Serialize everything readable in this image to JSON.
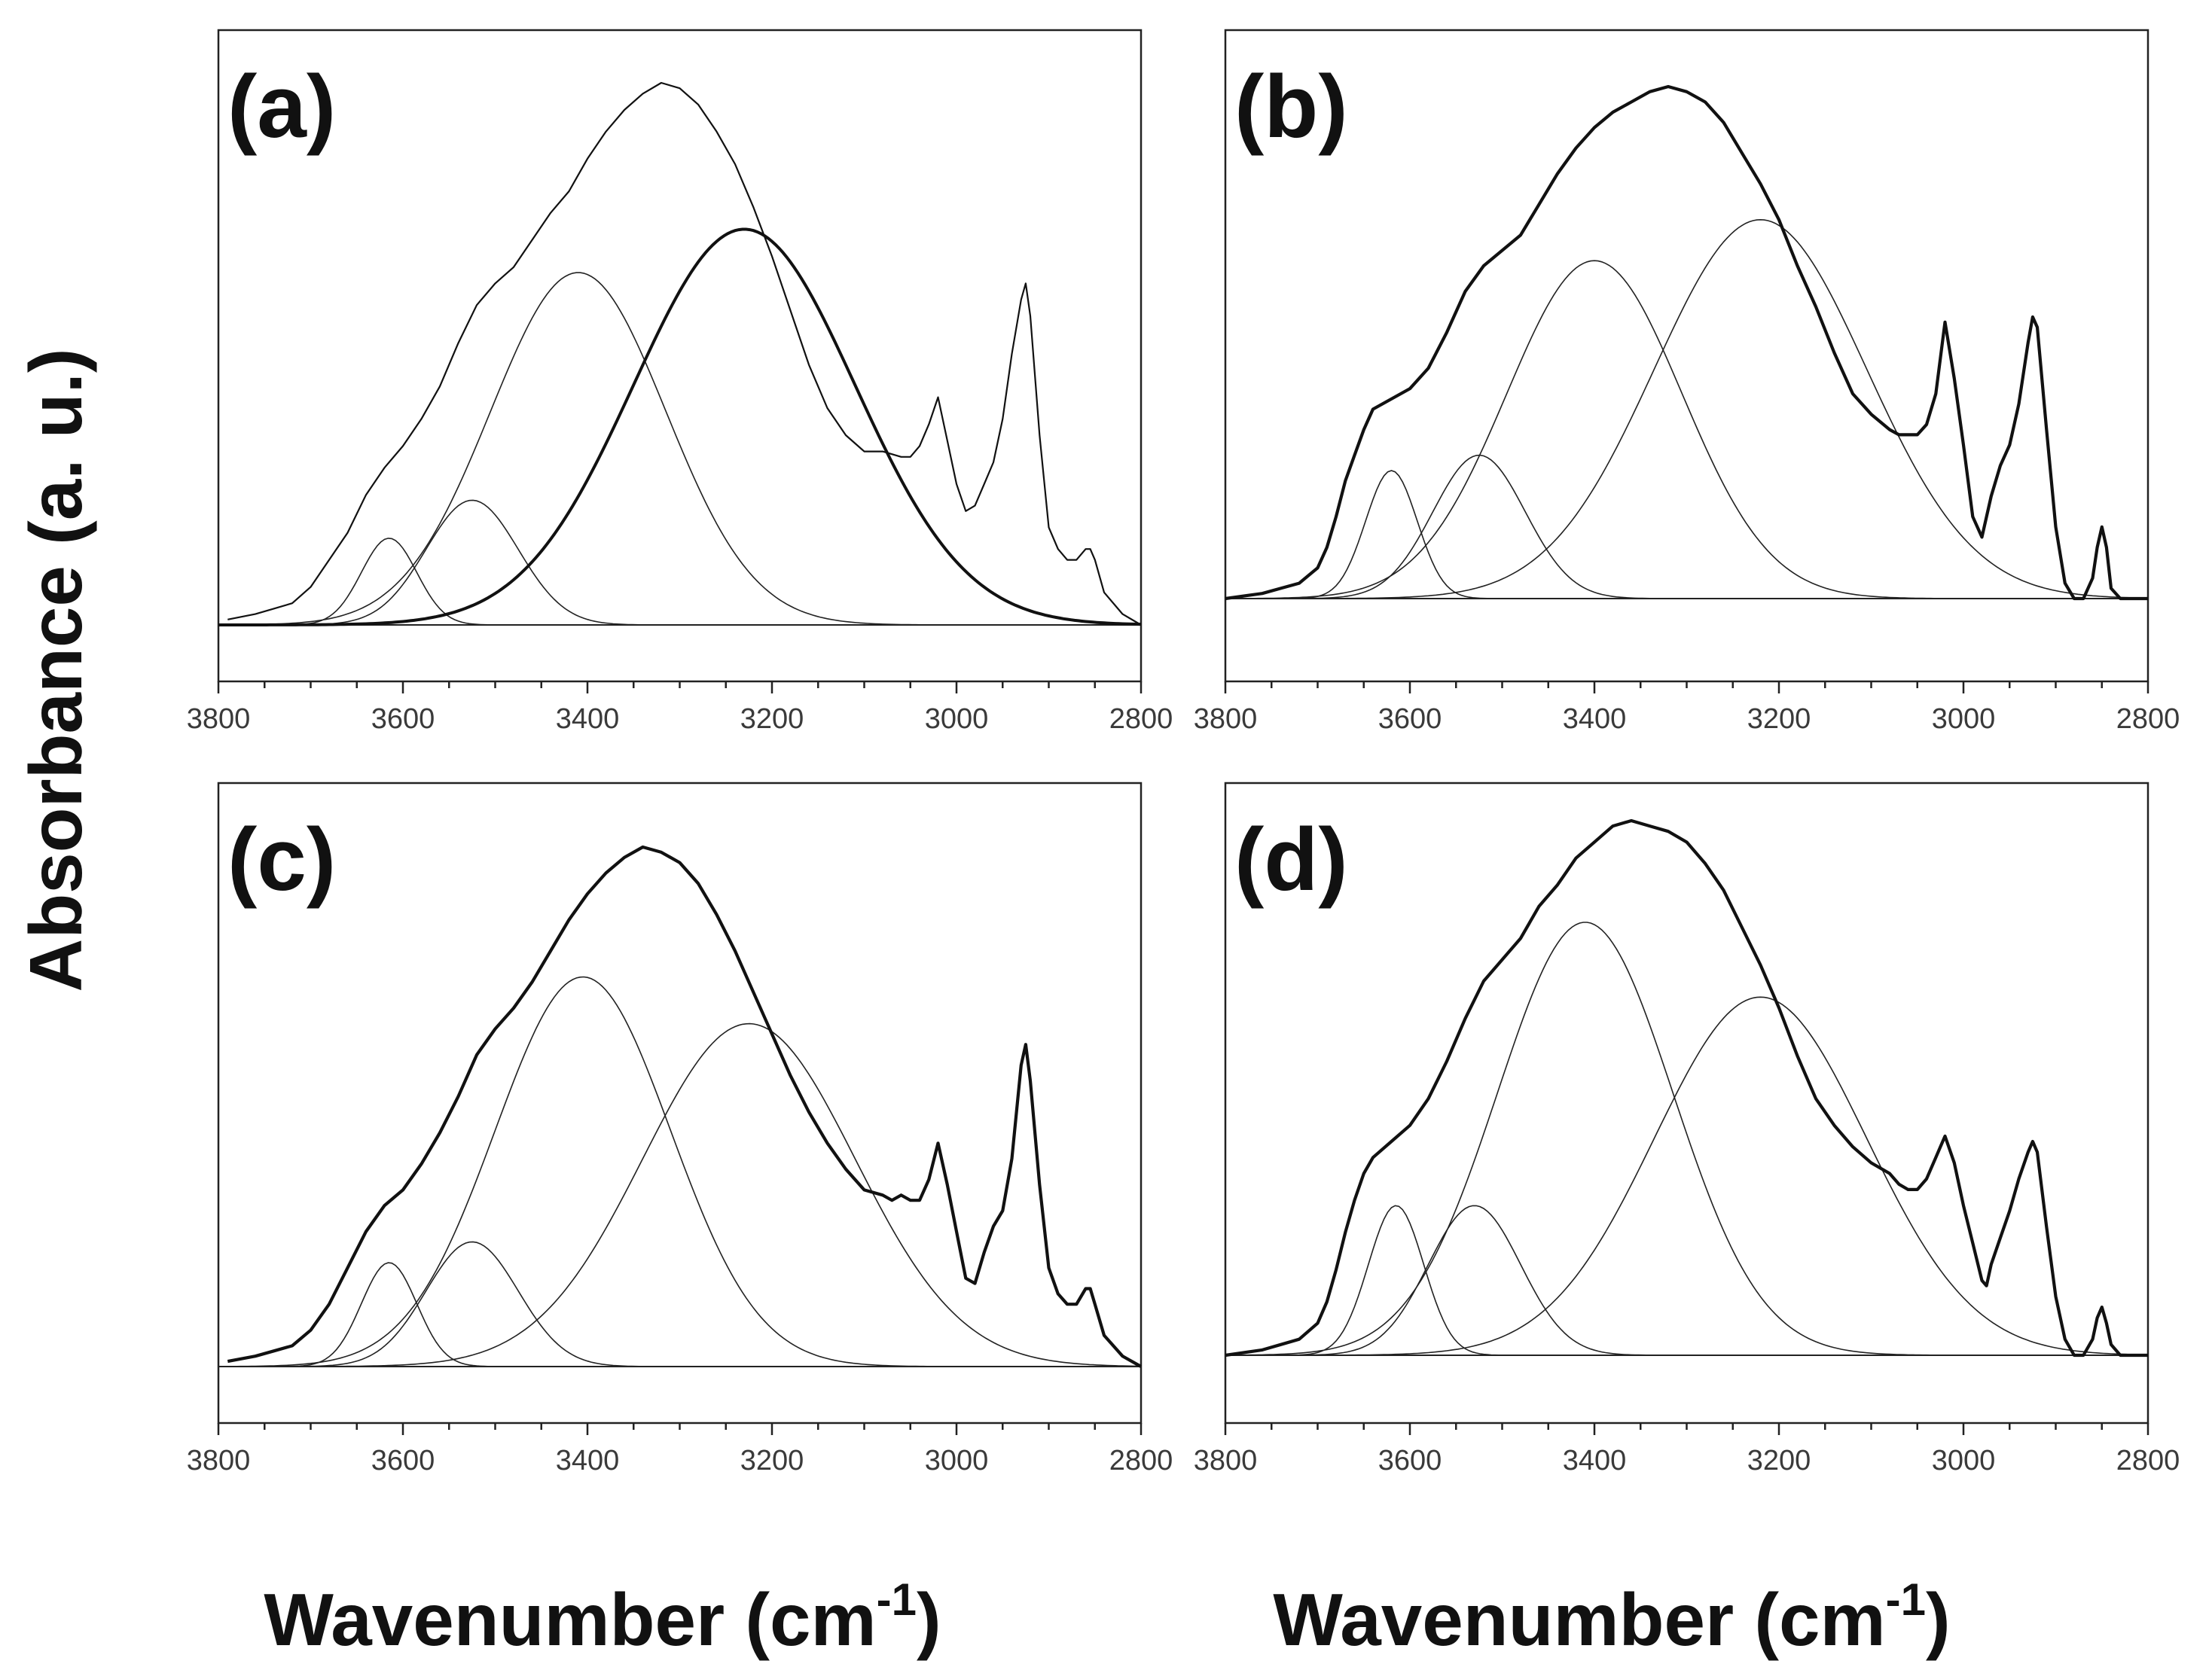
{
  "figure": {
    "ylabel": "Absorbance (a. u.)",
    "xlabel_left": "Wavenumber (cm",
    "xlabel_right": "Wavenumber (cm",
    "xlabel_sup": "-1",
    "xlabel_close": ")"
  },
  "chart_data": [
    {
      "type": "line",
      "panel": "(a)",
      "xlim": [
        3800,
        2800
      ],
      "x_ticks": [
        3800,
        3600,
        3400,
        3200,
        3000,
        2800
      ],
      "baseline": 0,
      "measured_spectrum": {
        "x": [
          3790,
          3760,
          3740,
          3720,
          3700,
          3680,
          3660,
          3640,
          3620,
          3600,
          3580,
          3560,
          3540,
          3520,
          3500,
          3480,
          3460,
          3440,
          3420,
          3400,
          3380,
          3360,
          3340,
          3320,
          3300,
          3280,
          3260,
          3240,
          3220,
          3200,
          3180,
          3160,
          3140,
          3120,
          3100,
          3080,
          3060,
          3050,
          3040,
          3030,
          3020,
          3010,
          3000,
          2990,
          2980,
          2970,
          2960,
          2950,
          2940,
          2930,
          2925,
          2920,
          2910,
          2900,
          2890,
          2880,
          2870,
          2860,
          2855,
          2850,
          2840,
          2820,
          2800
        ],
        "y": [
          0.01,
          0.02,
          0.03,
          0.04,
          0.07,
          0.12,
          0.17,
          0.24,
          0.29,
          0.33,
          0.38,
          0.44,
          0.52,
          0.59,
          0.63,
          0.66,
          0.71,
          0.76,
          0.8,
          0.86,
          0.91,
          0.95,
          0.98,
          1.0,
          0.99,
          0.96,
          0.91,
          0.85,
          0.77,
          0.68,
          0.58,
          0.48,
          0.4,
          0.35,
          0.32,
          0.32,
          0.31,
          0.31,
          0.33,
          0.37,
          0.42,
          0.34,
          0.26,
          0.21,
          0.22,
          0.26,
          0.3,
          0.38,
          0.5,
          0.6,
          0.63,
          0.57,
          0.35,
          0.18,
          0.14,
          0.12,
          0.12,
          0.14,
          0.14,
          0.12,
          0.06,
          0.02,
          0.0
        ]
      },
      "components": [
        {
          "center": 3615,
          "amplitude": 0.16,
          "sigma": 30
        },
        {
          "center": 3525,
          "amplitude": 0.23,
          "sigma": 50
        },
        {
          "center": 3410,
          "amplitude": 0.65,
          "sigma": 95
        },
        {
          "center": 3230,
          "amplitude": 0.73,
          "sigma": 120,
          "bold": true
        }
      ]
    },
    {
      "type": "line",
      "panel": "(b)",
      "xlim": [
        3800,
        2800
      ],
      "x_ticks": [
        3800,
        3600,
        3400,
        3200,
        3000,
        2800
      ],
      "baseline": 0,
      "measured_spectrum": {
        "x": [
          3800,
          3760,
          3740,
          3720,
          3700,
          3690,
          3680,
          3670,
          3660,
          3650,
          3640,
          3620,
          3600,
          3580,
          3560,
          3540,
          3520,
          3500,
          3480,
          3460,
          3440,
          3420,
          3400,
          3380,
          3360,
          3340,
          3320,
          3300,
          3280,
          3260,
          3240,
          3220,
          3200,
          3180,
          3160,
          3140,
          3120,
          3100,
          3080,
          3070,
          3060,
          3050,
          3040,
          3030,
          3020,
          3010,
          3000,
          2990,
          2980,
          2970,
          2960,
          2950,
          2940,
          2930,
          2925,
          2920,
          2910,
          2900,
          2890,
          2880,
          2870,
          2860,
          2855,
          2850,
          2845,
          2840,
          2830,
          2800
        ],
        "y": [
          0.0,
          0.01,
          0.02,
          0.03,
          0.06,
          0.1,
          0.16,
          0.23,
          0.28,
          0.33,
          0.37,
          0.39,
          0.41,
          0.45,
          0.52,
          0.6,
          0.65,
          0.68,
          0.71,
          0.77,
          0.83,
          0.88,
          0.92,
          0.95,
          0.97,
          0.99,
          1.0,
          0.99,
          0.97,
          0.93,
          0.87,
          0.81,
          0.74,
          0.65,
          0.57,
          0.48,
          0.4,
          0.36,
          0.33,
          0.32,
          0.32,
          0.32,
          0.34,
          0.4,
          0.54,
          0.43,
          0.3,
          0.16,
          0.12,
          0.2,
          0.26,
          0.3,
          0.38,
          0.5,
          0.55,
          0.53,
          0.33,
          0.14,
          0.03,
          0.0,
          0.0,
          0.04,
          0.1,
          0.14,
          0.1,
          0.02,
          0.0,
          0.0
        ]
      },
      "components": [
        {
          "center": 3620,
          "amplitude": 0.25,
          "sigma": 28
        },
        {
          "center": 3525,
          "amplitude": 0.28,
          "sigma": 50
        },
        {
          "center": 3400,
          "amplitude": 0.66,
          "sigma": 95
        },
        {
          "center": 3220,
          "amplitude": 0.74,
          "sigma": 115
        }
      ]
    },
    {
      "type": "line",
      "panel": "(c)",
      "xlim": [
        3800,
        2800
      ],
      "x_ticks": [
        3800,
        3600,
        3400,
        3200,
        3000,
        2800
      ],
      "baseline": 0,
      "measured_spectrum": {
        "x": [
          3790,
          3760,
          3740,
          3720,
          3700,
          3680,
          3660,
          3640,
          3620,
          3600,
          3580,
          3560,
          3540,
          3520,
          3500,
          3480,
          3460,
          3440,
          3420,
          3400,
          3380,
          3360,
          3340,
          3320,
          3300,
          3280,
          3260,
          3240,
          3220,
          3200,
          3180,
          3160,
          3140,
          3120,
          3100,
          3080,
          3070,
          3060,
          3050,
          3040,
          3030,
          3020,
          3010,
          3000,
          2990,
          2980,
          2970,
          2960,
          2950,
          2940,
          2930,
          2925,
          2920,
          2910,
          2900,
          2890,
          2880,
          2870,
          2860,
          2855,
          2850,
          2840,
          2820,
          2800
        ],
        "y": [
          0.01,
          0.02,
          0.03,
          0.04,
          0.07,
          0.12,
          0.19,
          0.26,
          0.31,
          0.34,
          0.39,
          0.45,
          0.52,
          0.6,
          0.65,
          0.69,
          0.74,
          0.8,
          0.86,
          0.91,
          0.95,
          0.98,
          1.0,
          0.99,
          0.97,
          0.93,
          0.87,
          0.8,
          0.72,
          0.64,
          0.56,
          0.49,
          0.43,
          0.38,
          0.34,
          0.33,
          0.32,
          0.33,
          0.32,
          0.32,
          0.36,
          0.43,
          0.35,
          0.26,
          0.17,
          0.16,
          0.22,
          0.27,
          0.3,
          0.4,
          0.58,
          0.62,
          0.55,
          0.35,
          0.19,
          0.14,
          0.12,
          0.12,
          0.15,
          0.15,
          0.12,
          0.06,
          0.02,
          0.0
        ]
      },
      "components": [
        {
          "center": 3615,
          "amplitude": 0.2,
          "sigma": 30
        },
        {
          "center": 3525,
          "amplitude": 0.24,
          "sigma": 50
        },
        {
          "center": 3405,
          "amplitude": 0.75,
          "sigma": 95
        },
        {
          "center": 3225,
          "amplitude": 0.66,
          "sigma": 115
        }
      ]
    },
    {
      "type": "line",
      "panel": "(d)",
      "xlim": [
        3800,
        2800
      ],
      "x_ticks": [
        3800,
        3600,
        3400,
        3200,
        3000,
        2800
      ],
      "baseline": 0,
      "measured_spectrum": {
        "x": [
          3800,
          3760,
          3740,
          3720,
          3700,
          3690,
          3680,
          3670,
          3660,
          3650,
          3640,
          3620,
          3600,
          3580,
          3560,
          3540,
          3520,
          3500,
          3480,
          3460,
          3440,
          3420,
          3400,
          3380,
          3360,
          3340,
          3320,
          3300,
          3280,
          3260,
          3240,
          3220,
          3200,
          3180,
          3160,
          3140,
          3120,
          3100,
          3080,
          3070,
          3060,
          3050,
          3040,
          3030,
          3020,
          3010,
          3000,
          2990,
          2980,
          2975,
          2970,
          2960,
          2950,
          2940,
          2930,
          2925,
          2920,
          2910,
          2900,
          2890,
          2880,
          2870,
          2860,
          2855,
          2850,
          2845,
          2840,
          2830,
          2800
        ],
        "y": [
          0.0,
          0.01,
          0.02,
          0.03,
          0.06,
          0.1,
          0.16,
          0.23,
          0.29,
          0.34,
          0.37,
          0.4,
          0.43,
          0.48,
          0.55,
          0.63,
          0.7,
          0.74,
          0.78,
          0.84,
          0.88,
          0.93,
          0.96,
          0.99,
          1.0,
          0.99,
          0.98,
          0.96,
          0.92,
          0.87,
          0.8,
          0.73,
          0.65,
          0.56,
          0.48,
          0.43,
          0.39,
          0.36,
          0.34,
          0.32,
          0.31,
          0.31,
          0.33,
          0.37,
          0.41,
          0.36,
          0.28,
          0.21,
          0.14,
          0.13,
          0.17,
          0.22,
          0.27,
          0.33,
          0.38,
          0.4,
          0.38,
          0.24,
          0.11,
          0.03,
          0.0,
          0.0,
          0.03,
          0.07,
          0.09,
          0.06,
          0.02,
          0.0,
          0.0
        ]
      },
      "components": [
        {
          "center": 3615,
          "amplitude": 0.28,
          "sigma": 30
        },
        {
          "center": 3530,
          "amplitude": 0.28,
          "sigma": 50
        },
        {
          "center": 3410,
          "amplitude": 0.81,
          "sigma": 95
        },
        {
          "center": 3220,
          "amplitude": 0.67,
          "sigma": 115
        }
      ]
    }
  ]
}
